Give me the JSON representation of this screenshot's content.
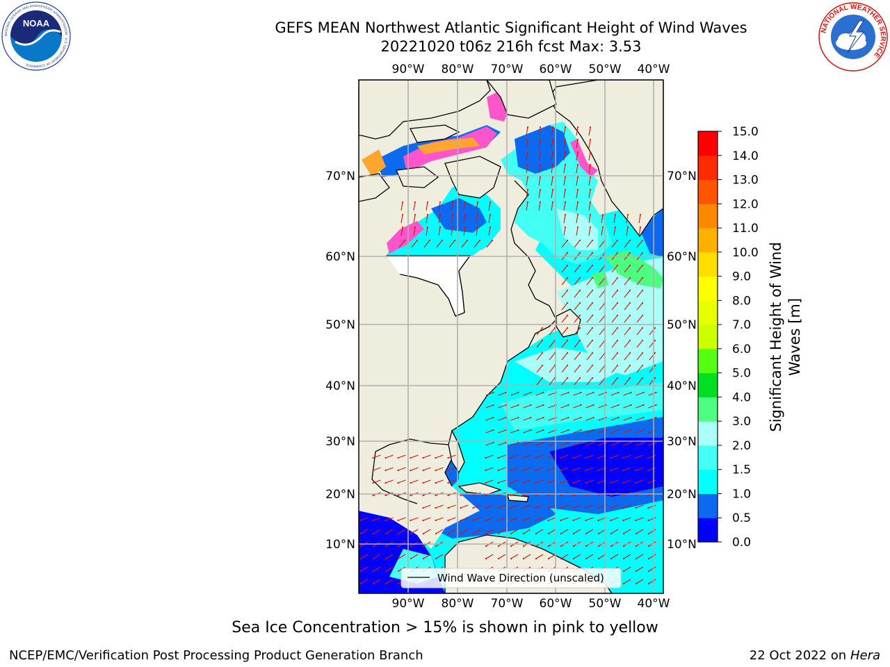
{
  "title_line1": "GEFS MEAN Northwest Atlantic Significant Height of Wind Waves",
  "title_line2": "20221020 t06z 216h fcst   Max: 3.53",
  "logos": {
    "left": {
      "name": "NOAA",
      "ring_text": "NATIONAL OCEANIC AND ATMOSPHERIC ADMINISTRATION · U.S. DEPARTMENT OF COMMERCE"
    },
    "right": {
      "name": "NATIONAL WEATHER SERVICE"
    }
  },
  "map": {
    "lon_ticks": [
      "90°W",
      "80°W",
      "70°W",
      "60°W",
      "50°W",
      "40°W"
    ],
    "lat_ticks": [
      "70°N",
      "60°N",
      "50°N",
      "40°N",
      "30°N",
      "20°N",
      "10°N"
    ],
    "legend_label": "Wind Wave Direction (unscaled)",
    "colors": {
      "land": "#efedde",
      "coast": "#000000",
      "grid": "#b0b0b0",
      "arrows": "#dd1100",
      "ice_pink": "#ff55cc",
      "ice_orange": "#ffa530"
    }
  },
  "colorbar": {
    "label_line1": "Significant Height of Wind",
    "label_line2": "Waves [m]",
    "tick_labels": [
      "0.0",
      "0.5",
      "1.0",
      "1.5",
      "2.0",
      "3.0",
      "4.0",
      "5.0",
      "6.0",
      "7.0",
      "8.0",
      "9.0",
      "10.0",
      "11.0",
      "12.0",
      "13.0",
      "14.0",
      "15.0"
    ],
    "colors": [
      "#0000ff",
      "#0b6af0",
      "#00ffff",
      "#44fff4",
      "#aafff8",
      "#4cff80",
      "#00e020",
      "#55ff11",
      "#ccff00",
      "#e8ff00",
      "#ffff00",
      "#ffde00",
      "#ffb000",
      "#ff8800",
      "#ff5500",
      "#ff2a00",
      "#ff0000"
    ]
  },
  "footer": {
    "ice_note": "Sea Ice Concentration > 15% is shown in pink to yellow",
    "credit": "NCEP/EMC/Verification Post Processing Product Generation Branch",
    "date": "22 Oct 2022 on ",
    "machine": "Hera"
  }
}
